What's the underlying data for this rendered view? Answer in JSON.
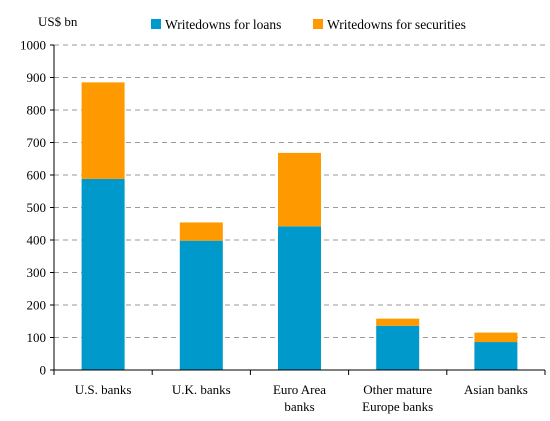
{
  "chart_data": {
    "type": "bar",
    "stacked": true,
    "ylabel": "US$ bn",
    "ylim": [
      0,
      1000
    ],
    "yticks": [
      0,
      100,
      200,
      300,
      400,
      500,
      600,
      700,
      800,
      900,
      1000
    ],
    "grid": "horizontal-dashed",
    "legend_position": "top",
    "categories": [
      [
        "U.S. banks"
      ],
      [
        "U.K. banks"
      ],
      [
        "Euro Area",
        "banks"
      ],
      [
        "Other mature",
        "Europe banks"
      ],
      [
        "Asian banks"
      ]
    ],
    "series": [
      {
        "name": "Writedowns for loans",
        "color": "#0099cc",
        "values": [
          588,
          398,
          442,
          136,
          86
        ]
      },
      {
        "name": "Writedowns for securities",
        "color": "#ff9900",
        "values": [
          297,
          56,
          226,
          22,
          29
        ]
      }
    ]
  }
}
